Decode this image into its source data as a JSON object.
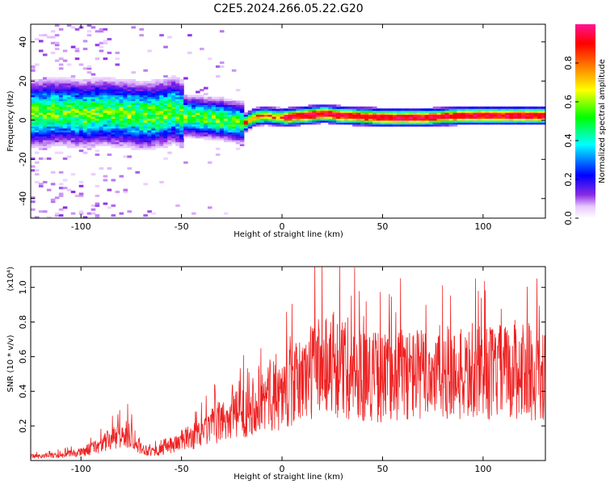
{
  "title": "C2E5.2024.266.05.22.G20",
  "chart_data": [
    {
      "type": "heatmap",
      "xlabel": "Height of straight line (km)",
      "ylabel": "Frequency (Hz)",
      "xlim": [
        -125,
        131
      ],
      "ylim": [
        -50,
        49
      ],
      "xticks": [
        -100,
        -50,
        0,
        50,
        100
      ],
      "yticks": [
        -40,
        -20,
        0,
        20,
        40
      ],
      "description_of_values": "narrowband signal near 0-3 Hz; broad noisy spectrum below -20 km, tight red peak above 0 km",
      "colorbar": {
        "label": "Normalized spectral amplitude",
        "range": [
          0.0,
          1.0
        ],
        "ticks": [
          0.0,
          0.2,
          0.4,
          0.6,
          0.8
        ]
      },
      "ridge": {
        "x": [
          -125,
          -110,
          -100,
          -90,
          -80,
          -70,
          -60,
          -55,
          -50,
          -40,
          -30,
          -20,
          -15,
          -10,
          0,
          10,
          20,
          30,
          50,
          70,
          90,
          110,
          131
        ],
        "y": [
          3,
          4,
          3,
          4,
          3,
          2,
          3,
          5,
          2,
          1,
          0,
          -2,
          1,
          2,
          1,
          2,
          3,
          2,
          1,
          1,
          2,
          2,
          2
        ]
      }
    },
    {
      "type": "line",
      "xlabel": "Height of straight line (km)",
      "ylabel": "SNR (10 * v/v)",
      "yscale_label": "(x10⁴)",
      "xlim": [
        -125,
        131
      ],
      "ylim": [
        0,
        1.12
      ],
      "xticks": [
        -100,
        -50,
        0,
        50,
        100
      ],
      "yticks": [
        0.2,
        0.4,
        0.6,
        0.8,
        1.0
      ],
      "series": [
        {
          "color": "#ee2222",
          "envelope_x": [
            -125,
            -110,
            -100,
            -90,
            -85,
            -75,
            -70,
            -65,
            -60,
            -50,
            -40,
            -30,
            -20,
            -15,
            -10,
            0,
            10,
            20,
            25,
            30,
            40,
            50,
            60,
            70,
            80,
            90,
            100,
            110,
            120,
            131
          ],
          "envelope_y": [
            0.03,
            0.04,
            0.06,
            0.12,
            0.16,
            0.2,
            0.09,
            0.07,
            0.08,
            0.15,
            0.2,
            0.3,
            0.35,
            0.42,
            0.45,
            0.5,
            0.6,
            0.75,
            0.7,
            0.68,
            0.65,
            0.62,
            0.65,
            0.64,
            0.66,
            0.63,
            0.65,
            0.66,
            0.67,
            0.62
          ]
        }
      ]
    }
  ]
}
